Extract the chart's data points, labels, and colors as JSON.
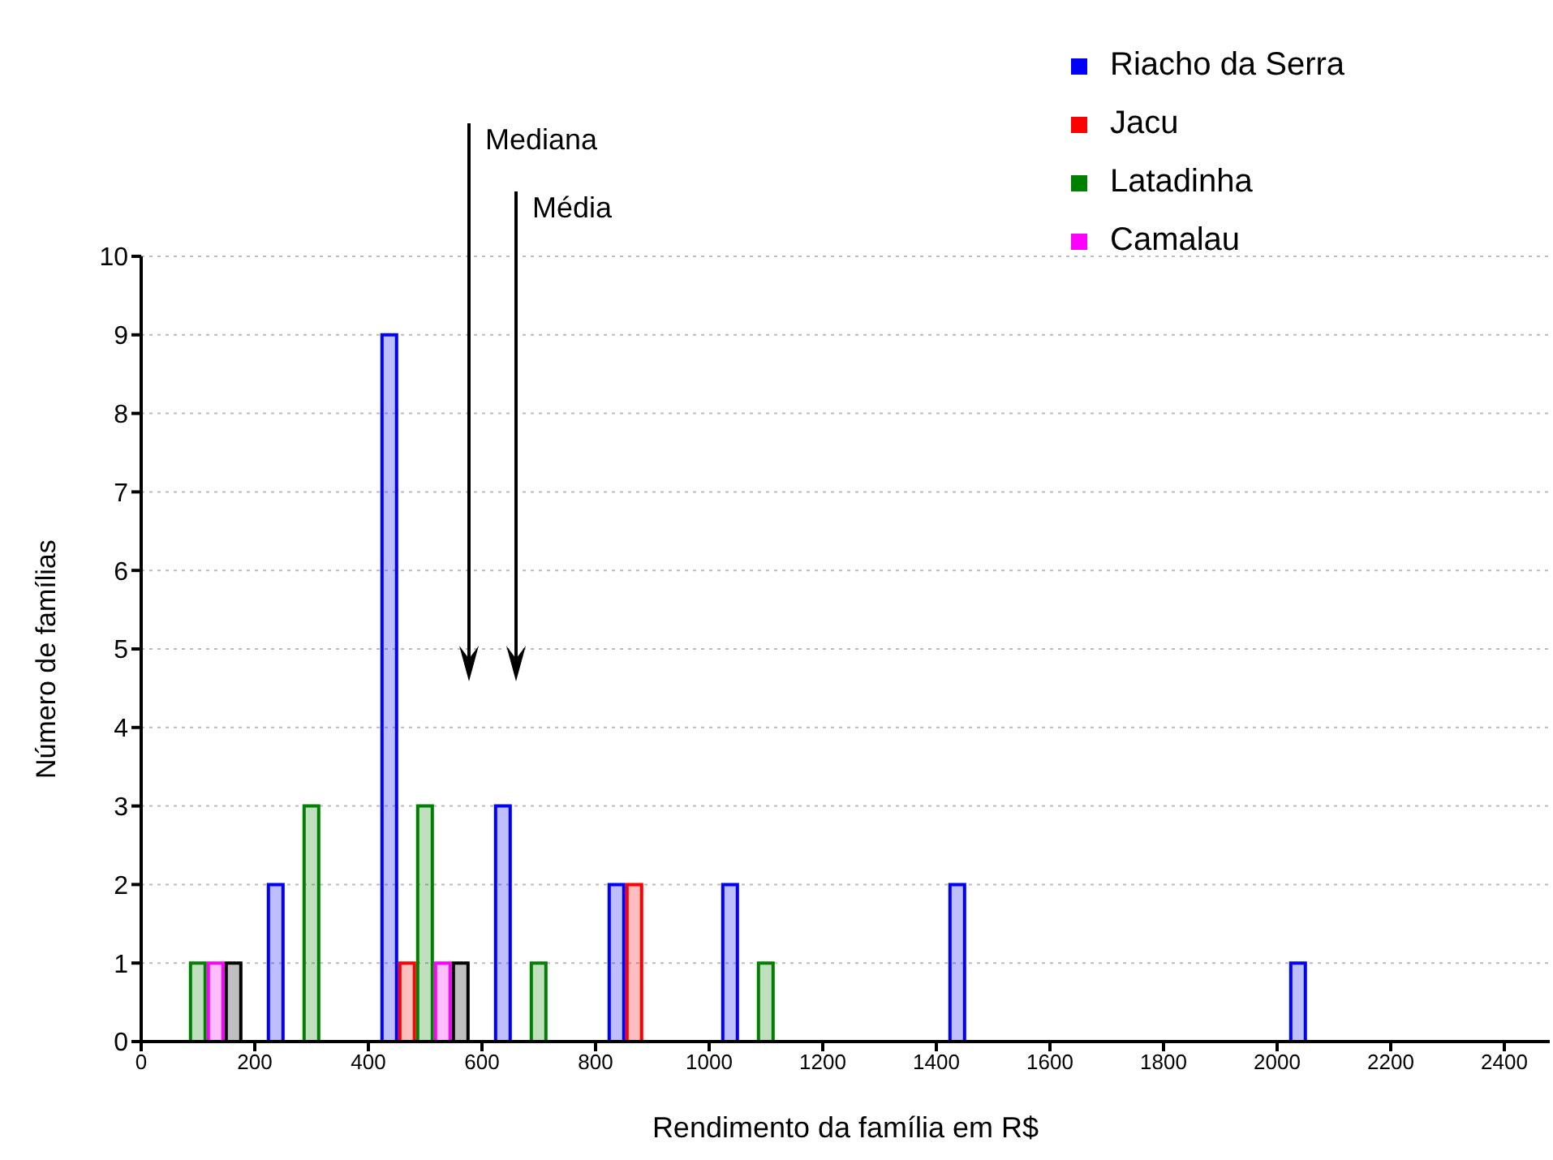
{
  "chart_data": {
    "type": "histogram",
    "xlabel": "Rendimento da família em R$",
    "ylabel": "Número de famílias",
    "bins": [
      0,
      200,
      400,
      600,
      800,
      1000,
      1200,
      1400,
      1600,
      1800,
      2000,
      2200,
      2400
    ],
    "series": [
      {
        "name": "Riacho da Serra",
        "color": "#0000ff",
        "values": [
          0,
          2,
          9,
          3,
          2,
          2,
          0,
          2,
          0,
          0,
          1,
          0
        ]
      },
      {
        "name": "Jacu",
        "color": "#ff0000",
        "values": [
          0,
          0,
          1,
          0,
          2,
          0,
          0,
          0,
          0,
          0,
          0,
          0
        ]
      },
      {
        "name": "Latadinha",
        "color": "#008000",
        "values": [
          1,
          3,
          3,
          1,
          0,
          1,
          0,
          0,
          0,
          0,
          0,
          0
        ]
      },
      {
        "name": "Camalau",
        "color": "#ff00ff",
        "values": [
          1,
          0,
          1,
          0,
          0,
          0,
          0,
          0,
          0,
          0,
          0,
          0
        ]
      },
      {
        "color": "#000000",
        "values": [
          1,
          0,
          1,
          0,
          0,
          0,
          0,
          0,
          0,
          0,
          0,
          0
        ]
      }
    ],
    "xlim": [
      0,
      2480
    ],
    "xticks": [
      0,
      200,
      400,
      600,
      800,
      1000,
      1200,
      1400,
      1600,
      1800,
      2000,
      2200,
      2400
    ],
    "ylim": [
      0,
      10
    ],
    "yticks": [
      0,
      1,
      2,
      3,
      4,
      5,
      6,
      7,
      8,
      9,
      10
    ],
    "grid": "y",
    "legend": "top right",
    "annotations": [
      "Mediana",
      "Média"
    ]
  }
}
